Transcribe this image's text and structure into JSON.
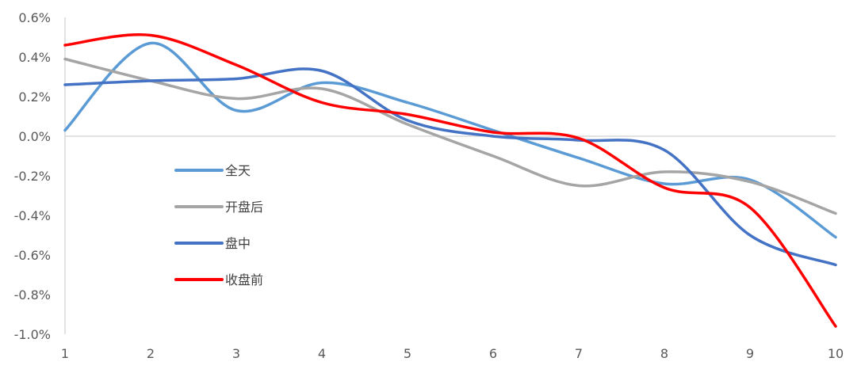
{
  "chart_data": {
    "type": "line",
    "x": [
      1,
      2,
      3,
      4,
      5,
      6,
      7,
      8,
      9,
      10
    ],
    "xlim": [
      1,
      10
    ],
    "ylim": [
      -0.01,
      0.006
    ],
    "x_ticks": [
      "1",
      "2",
      "3",
      "4",
      "5",
      "6",
      "7",
      "8",
      "9",
      "10"
    ],
    "y_ticks": [
      {
        "value": 0.006,
        "label": "0.6%"
      },
      {
        "value": 0.004,
        "label": "0.4%"
      },
      {
        "value": 0.002,
        "label": "0.2%"
      },
      {
        "value": 0.0,
        "label": "0.0%"
      },
      {
        "value": -0.002,
        "label": "-0.2%"
      },
      {
        "value": -0.004,
        "label": "-0.4%"
      },
      {
        "value": -0.006,
        "label": "-0.6%"
      },
      {
        "value": -0.008,
        "label": "-0.8%"
      },
      {
        "value": -0.01,
        "label": "-1.0%"
      }
    ],
    "legend_position": "left-center",
    "grid": false,
    "series": [
      {
        "name": "全天",
        "color": "#5B9BD5",
        "values": [
          0.0003,
          0.0047,
          0.0013,
          0.0027,
          0.0017,
          0.0003,
          -0.0011,
          -0.0024,
          -0.0022,
          -0.0051
        ]
      },
      {
        "name": "开盘后",
        "color": "#A5A5A5",
        "values": [
          0.0039,
          0.0028,
          0.0019,
          0.0024,
          0.0006,
          -0.001,
          -0.0025,
          -0.0018,
          -0.0023,
          -0.0039
        ]
      },
      {
        "name": "盘中",
        "color": "#4472C4",
        "values": [
          0.0026,
          0.0028,
          0.0029,
          0.0033,
          0.0008,
          0.0,
          -0.0002,
          -0.0007,
          -0.005,
          -0.0065
        ]
      },
      {
        "name": "收盘前",
        "color": "#FF0000",
        "values": [
          0.0046,
          0.0051,
          0.0036,
          0.0017,
          0.0011,
          0.0002,
          -0.0001,
          -0.0026,
          -0.0036,
          -0.0096
        ]
      }
    ]
  }
}
